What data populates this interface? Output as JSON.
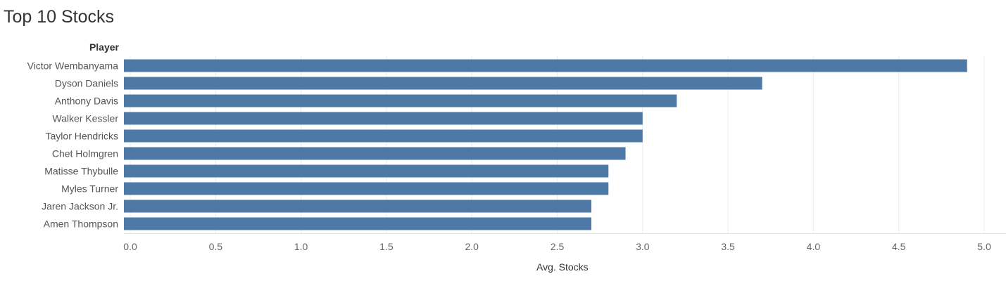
{
  "chart_data": {
    "type": "bar",
    "orientation": "horizontal",
    "title": "Top 10 Stocks",
    "row_header": "Player",
    "xlabel": "Avg. Stocks",
    "ylabel": "Player",
    "xlim": [
      0,
      5
    ],
    "ticks": [
      "0.0",
      "0.5",
      "1.0",
      "1.5",
      "2.0",
      "2.5",
      "3.0",
      "3.5",
      "4.0",
      "4.5",
      "5.0"
    ],
    "tick_values": [
      0,
      0.5,
      1,
      1.5,
      2,
      2.5,
      3,
      3.5,
      4,
      4.5,
      5
    ],
    "grid": true,
    "bar_color": "#4e79a7",
    "categories": [
      "Victor Wembanyama",
      "Dyson Daniels",
      "Anthony Davis",
      "Walker Kessler",
      "Taylor Hendricks",
      "Chet Holmgren",
      "Matisse Thybulle",
      "Myles Turner",
      "Jaren Jackson Jr.",
      "Amen Thompson"
    ],
    "values": [
      4.9,
      3.7,
      3.2,
      3.0,
      3.0,
      2.9,
      2.8,
      2.8,
      2.7,
      2.7
    ]
  }
}
